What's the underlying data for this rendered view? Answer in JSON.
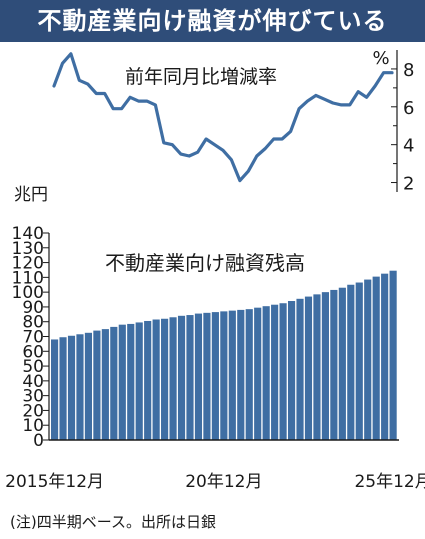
{
  "title": "不動産業向け融資が伸びている",
  "footnote": "(注)四半期ベース。出所は日銀",
  "colors": {
    "title_bg": "#2f4d79",
    "bar": "#3f6ea3",
    "line": "#3f6ea3"
  },
  "chart_data": [
    {
      "type": "line",
      "title": "前年同月比増減率",
      "unit": "%",
      "yticks": [
        2,
        4,
        6,
        8
      ],
      "ylim": [
        1.5,
        9
      ],
      "values": [
        7.1,
        8.3,
        8.8,
        7.4,
        7.2,
        6.7,
        6.7,
        5.9,
        5.9,
        6.5,
        6.3,
        6.3,
        6.1,
        4.1,
        4.0,
        3.5,
        3.4,
        3.6,
        4.3,
        4.0,
        3.7,
        3.2,
        2.1,
        2.6,
        3.4,
        3.8,
        4.3,
        4.3,
        4.7,
        5.9,
        6.3,
        6.6,
        6.4,
        6.2,
        6.1,
        6.1,
        6.8,
        6.5,
        7.1,
        7.8,
        7.8
      ]
    },
    {
      "type": "bar",
      "title": "不動産業向け融資残高",
      "unit": "兆円",
      "yticks": [
        0,
        10,
        20,
        30,
        40,
        50,
        60,
        70,
        80,
        90,
        100,
        110,
        120,
        130,
        140
      ],
      "ytick_labels": [
        "0",
        "10",
        "20",
        "30",
        "40",
        "50",
        "60",
        "70",
        "80",
        "90",
        "100",
        "110",
        "120",
        "130",
        "140"
      ],
      "ylim": [
        0,
        140
      ],
      "x_labels": [
        "2015年12月",
        "20年12月",
        "25年12月"
      ],
      "x_label_index": [
        0,
        20,
        40
      ],
      "values": [
        68,
        69.5,
        70.5,
        71.5,
        72.5,
        74,
        75,
        76.5,
        78,
        78.5,
        79.5,
        80.5,
        81.5,
        82,
        83,
        84,
        84.5,
        85.5,
        86,
        86.5,
        87,
        87.5,
        88,
        88.5,
        89.5,
        90.5,
        91.5,
        92.5,
        94,
        95.5,
        97,
        98.5,
        100,
        101.5,
        103,
        105,
        106.5,
        108.5,
        110.5,
        112.5,
        114.5
      ]
    }
  ]
}
